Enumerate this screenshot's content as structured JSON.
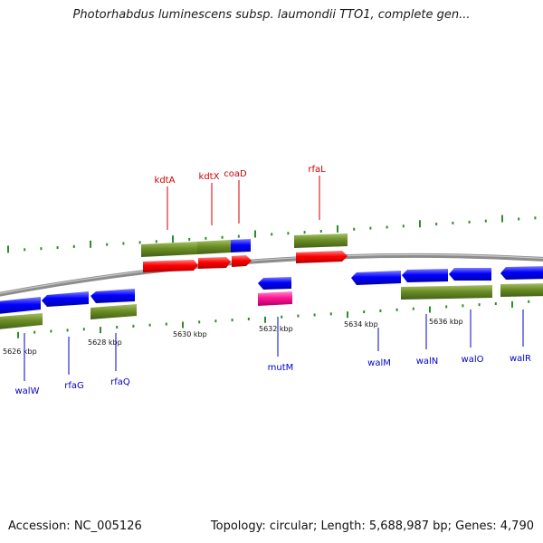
{
  "title": "Photorhabdus luminescens subsp. laumondii TTO1, complete gen...",
  "footer": {
    "accession": "Accession: NC_005126",
    "summary": "Topology: circular; Length: 5,688,987 bp; Genes: 4,790"
  },
  "colors": {
    "backbone": "#8c8c8c",
    "tick": "#2e8b2e",
    "forward_label": "#cc0000",
    "reverse_label": "#0000cc",
    "gene_red": "#ff0000",
    "gene_blue": "#0000ff",
    "gene_green": "#6b8e23",
    "gene_magenta": "#ff1493"
  },
  "ticks": [
    {
      "label": "5626 kbp"
    },
    {
      "label": "5628 kbp"
    },
    {
      "label": "5630 kbp"
    },
    {
      "label": "5632 kbp"
    },
    {
      "label": "5634 kbp"
    },
    {
      "label": "5636 kbp"
    }
  ],
  "genes_forward": [
    {
      "name": "kdtA"
    },
    {
      "name": "kdtX"
    },
    {
      "name": "coaD"
    },
    {
      "name": "rfaL"
    }
  ],
  "genes_reverse": [
    {
      "name": "walW"
    },
    {
      "name": "rfaG"
    },
    {
      "name": "rfaQ"
    },
    {
      "name": "mutM"
    },
    {
      "name": "walM"
    },
    {
      "name": "walN"
    },
    {
      "name": "walO"
    },
    {
      "name": "walR"
    }
  ]
}
